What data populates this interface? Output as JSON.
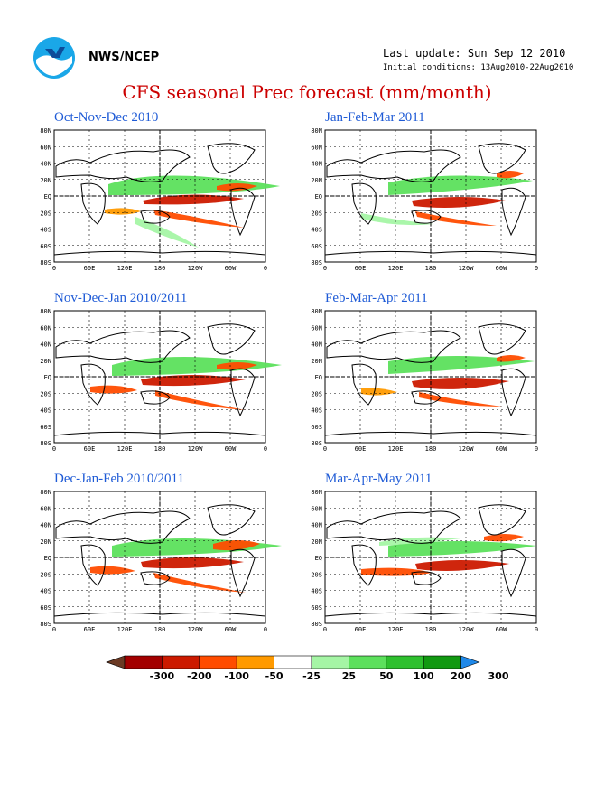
{
  "header": {
    "org": "NWS/NCEP",
    "last_update": "Last update: Sun Sep 12 2010",
    "initial_conditions": "Initial conditions: 13Aug2010-22Aug2010",
    "logo_icon": "noaa-logo-icon"
  },
  "title": "CFS seasonal Prec forecast (mm/month)",
  "panels": [
    {
      "title": "Oct-Nov-Dec 2010"
    },
    {
      "title": "Jan-Feb-Mar 2011"
    },
    {
      "title": "Nov-Dec-Jan 2010/2011"
    },
    {
      "title": "Feb-Mar-Apr 2011"
    },
    {
      "title": "Dec-Jan-Feb 2010/2011"
    },
    {
      "title": "Mar-Apr-May 2011"
    }
  ],
  "axes": {
    "lat_labels": [
      "80N",
      "60N",
      "40N",
      "20N",
      "EQ",
      "20S",
      "40S",
      "60S",
      "80S"
    ],
    "lon_labels": [
      "0",
      "60E",
      "120E",
      "180",
      "120W",
      "60W",
      "0"
    ]
  },
  "colorbar": {
    "labels": [
      "-300",
      "-200",
      "-100",
      "-50",
      "-25",
      "25",
      "50",
      "100",
      "200",
      "300"
    ],
    "colors": [
      "#6b3a24",
      "#a30000",
      "#cc1a00",
      "#ff4c00",
      "#ff9a00",
      "#ffffff",
      "#a5f5a5",
      "#5ce05c",
      "#2ec02e",
      "#119911",
      "#1f88e8"
    ]
  },
  "chart_data": {
    "type": "heatmap",
    "title": "CFS seasonal Prec forecast (mm/month)",
    "units": "mm/month",
    "levels": [
      -300,
      -200,
      -100,
      -50,
      -25,
      25,
      50,
      100,
      200,
      300
    ],
    "panels": [
      "Oct-Nov-Dec 2010",
      "Jan-Feb-Mar 2011",
      "Nov-Dec-Jan 2010/2011",
      "Feb-Mar-Apr 2011",
      "Dec-Jan-Feb 2010/2011",
      "Mar-Apr-May 2011"
    ]
  }
}
